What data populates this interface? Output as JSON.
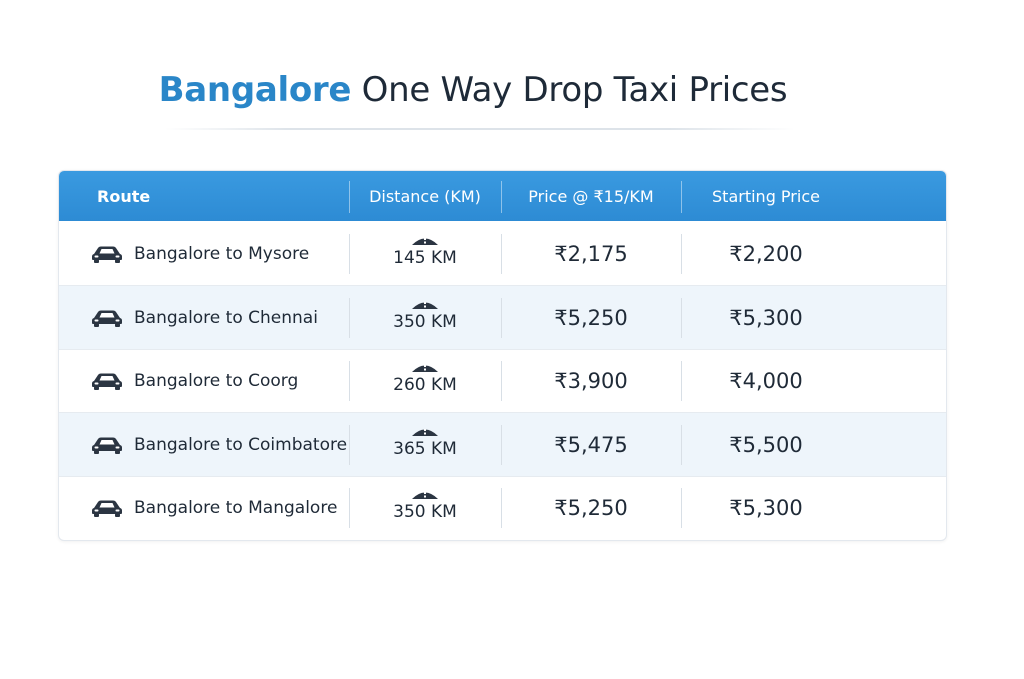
{
  "title": {
    "accent": "Bangalore",
    "rest": " One Way Drop Taxi Prices"
  },
  "colors": {
    "accent": "#2a86c8",
    "header_bg": "#3393da",
    "row_alt": "#eef5fb",
    "text": "#1f2a37"
  },
  "icons": {
    "route": "car-icon",
    "distance": "road-icon"
  },
  "table": {
    "headers": {
      "route": "Route",
      "distance": "Distance (KM)",
      "price": "Price @ ₹15/KM",
      "starting": "Starting Price"
    },
    "rows": [
      {
        "route": "Bangalore to Mysore",
        "distance": "145 KM",
        "price": "₹2,175",
        "starting": "₹2,200"
      },
      {
        "route": "Bangalore to Chennai",
        "distance": "350 KM",
        "price": "₹5,250",
        "starting": "₹5,300"
      },
      {
        "route": "Bangalore to Coorg",
        "distance": "260 KM",
        "price": "₹3,900",
        "starting": "₹4,000"
      },
      {
        "route": "Bangalore to Coimbatore",
        "distance": "365 KM",
        "price": "₹5,475",
        "starting": "₹5,500"
      },
      {
        "route": "Bangalore to Mangalore",
        "distance": "350 KM",
        "price": "₹5,250",
        "starting": "₹5,300"
      }
    ]
  }
}
